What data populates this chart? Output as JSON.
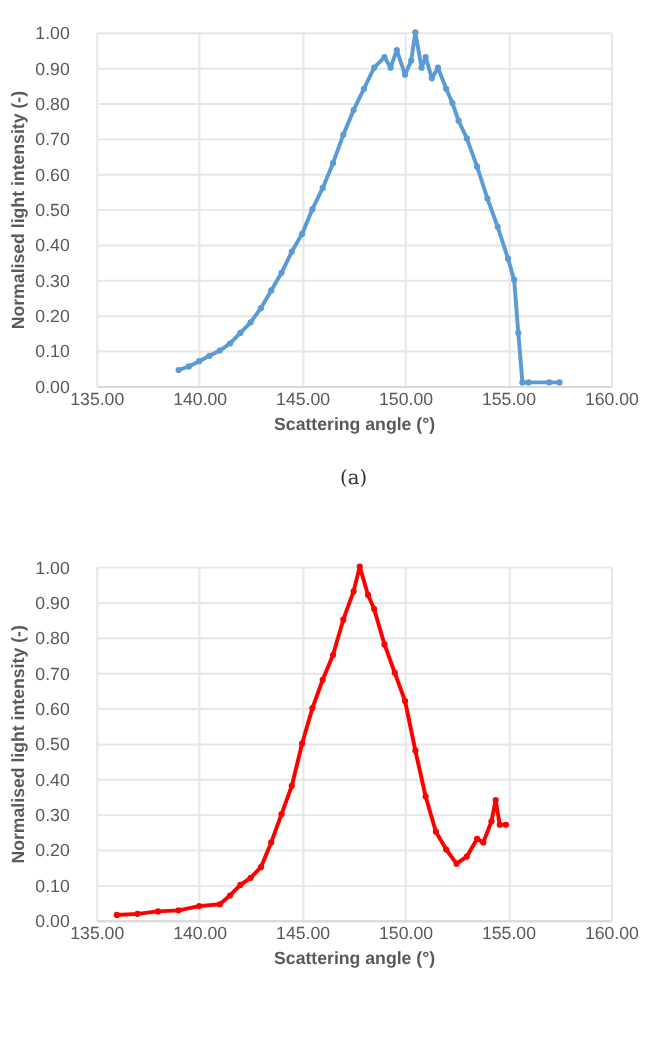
{
  "chart_data": [
    {
      "type": "line",
      "xlabel": "Scattering angle (°)",
      "ylabel": "Normalised light intensity (-)",
      "annotations": [
        "(a)"
      ],
      "grid": true,
      "marker": "circle",
      "line_style": "solid",
      "xlim": [
        135,
        160
      ],
      "ylim": [
        0,
        1
      ],
      "xticks": [
        {
          "value": 135,
          "label": "135.00"
        },
        {
          "value": 140,
          "label": "140.00"
        },
        {
          "value": 145,
          "label": "145.00"
        },
        {
          "value": 150,
          "label": "150.00"
        },
        {
          "value": 155,
          "label": "155.00"
        },
        {
          "value": 160,
          "label": "160.00"
        }
      ],
      "yticks": [
        {
          "value": 0,
          "label": "0.00"
        },
        {
          "value": 0.1,
          "label": "0.10"
        },
        {
          "value": 0.2,
          "label": "0.20"
        },
        {
          "value": 0.3,
          "label": "0.30"
        },
        {
          "value": 0.4,
          "label": "0.40"
        },
        {
          "value": 0.5,
          "label": "0.50"
        },
        {
          "value": 0.6,
          "label": "0.60"
        },
        {
          "value": 0.7,
          "label": "0.70"
        },
        {
          "value": 0.8,
          "label": "0.80"
        },
        {
          "value": 0.9,
          "label": "0.90"
        },
        {
          "value": 1,
          "label": "1.00"
        }
      ],
      "series": [
        {
          "color": "#5b9bd5",
          "x": [
            139.0,
            139.5,
            140,
            140.5,
            141,
            141.5,
            142,
            142.5,
            143,
            143.5,
            144,
            144.5,
            145,
            145.5,
            146,
            146.5,
            147,
            147.5,
            148,
            148.5,
            149,
            149.3,
            149.6,
            150,
            150.3,
            150.5,
            150.8,
            151,
            151.3,
            151.6,
            152,
            152.3,
            152.6,
            153,
            153.5,
            154,
            154.5,
            155,
            155.3,
            155.5,
            155.7,
            156,
            157,
            157.5
          ],
          "values": [
            0.045,
            0.055,
            0.07,
            0.085,
            0.1,
            0.12,
            0.15,
            0.18,
            0.22,
            0.27,
            0.32,
            0.38,
            0.43,
            0.5,
            0.56,
            0.63,
            0.71,
            0.78,
            0.84,
            0.9,
            0.93,
            0.9,
            0.95,
            0.88,
            0.92,
            1.0,
            0.9,
            0.93,
            0.87,
            0.9,
            0.84,
            0.8,
            0.75,
            0.7,
            0.62,
            0.53,
            0.45,
            0.36,
            0.3,
            0.15,
            0.01,
            0.01,
            0.01,
            0.01
          ]
        }
      ]
    },
    {
      "type": "line",
      "xlabel": "Scattering angle (°)",
      "ylabel": "Normalised light intensity (-)",
      "grid": true,
      "marker": "circle",
      "line_style": "solid",
      "xlim": [
        135,
        160
      ],
      "ylim": [
        0,
        1
      ],
      "xticks": [
        {
          "value": 135,
          "label": "135.00"
        },
        {
          "value": 140,
          "label": "140.00"
        },
        {
          "value": 145,
          "label": "145.00"
        },
        {
          "value": 150,
          "label": "150.00"
        },
        {
          "value": 155,
          "label": "155.00"
        },
        {
          "value": 160,
          "label": "160.00"
        }
      ],
      "yticks": [
        {
          "value": 0,
          "label": "0.00"
        },
        {
          "value": 0.1,
          "label": "0.10"
        },
        {
          "value": 0.2,
          "label": "0.20"
        },
        {
          "value": 0.3,
          "label": "0.30"
        },
        {
          "value": 0.4,
          "label": "0.40"
        },
        {
          "value": 0.5,
          "label": "0.50"
        },
        {
          "value": 0.6,
          "label": "0.60"
        },
        {
          "value": 0.7,
          "label": "0.70"
        },
        {
          "value": 0.8,
          "label": "0.80"
        },
        {
          "value": 0.9,
          "label": "0.90"
        },
        {
          "value": 1,
          "label": "1.00"
        }
      ],
      "series": [
        {
          "color": "#ff0000",
          "x": [
            136,
            137,
            138,
            139,
            140,
            141,
            141.5,
            142,
            142.5,
            143,
            143.5,
            144,
            144.5,
            145,
            145.5,
            146,
            146.5,
            147,
            147.5,
            147.8,
            148.2,
            148.5,
            149,
            149.5,
            150,
            150.5,
            151,
            151.5,
            152,
            152.5,
            153,
            153.5,
            153.8,
            154.2,
            154.4,
            154.6,
            154.9
          ],
          "values": [
            0.015,
            0.018,
            0.025,
            0.028,
            0.04,
            0.045,
            0.07,
            0.1,
            0.12,
            0.15,
            0.22,
            0.3,
            0.38,
            0.5,
            0.6,
            0.68,
            0.75,
            0.85,
            0.93,
            1.0,
            0.92,
            0.88,
            0.78,
            0.7,
            0.62,
            0.48,
            0.35,
            0.25,
            0.2,
            0.16,
            0.18,
            0.23,
            0.22,
            0.28,
            0.34,
            0.27,
            0.27
          ]
        }
      ]
    }
  ]
}
